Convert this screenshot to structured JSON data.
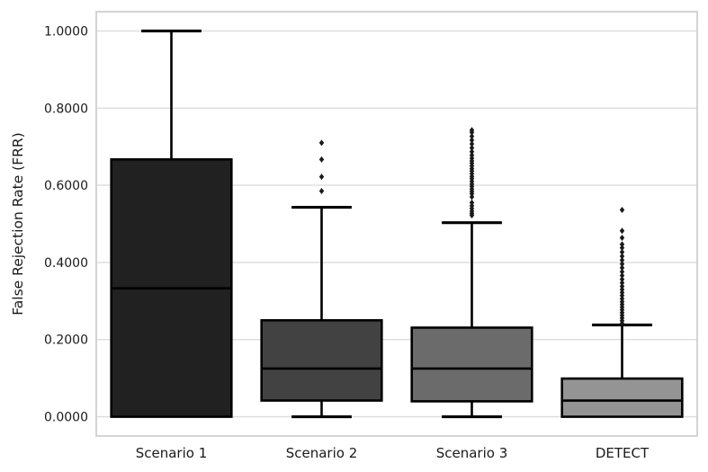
{
  "chart_data": {
    "type": "box",
    "title": "",
    "xlabel": "",
    "ylabel": "False Rejection Rate (FRR)",
    "ylim": [
      -0.05,
      1.05
    ],
    "yticks": [
      0.0,
      0.2,
      0.4,
      0.6,
      0.8,
      1.0
    ],
    "ytick_labels": [
      "0.0000",
      "0.2000",
      "0.4000",
      "0.6000",
      "0.8000",
      "1.0000"
    ],
    "grid": "horizontal",
    "legend": "none",
    "categories": [
      "Scenario 1",
      "Scenario 2",
      "Scenario 3",
      "DETECT"
    ],
    "boxes": [
      {
        "label": "Scenario 1",
        "slug": "scenario-1",
        "whisker_low": 0.0,
        "q1": 0.0,
        "median": 0.333,
        "q3": 0.667,
        "whisker_high": 1.0,
        "fill": "#212121",
        "outliers": []
      },
      {
        "label": "Scenario 2",
        "slug": "scenario-2",
        "whisker_low": 0.0,
        "q1": 0.042,
        "median": 0.125,
        "q3": 0.25,
        "whisker_high": 0.543,
        "fill": "#424242",
        "outliers": [
          0.585,
          0.622,
          0.667,
          0.71
        ]
      },
      {
        "label": "Scenario 3",
        "slug": "scenario-3",
        "whisker_low": 0.0,
        "q1": 0.04,
        "median": 0.125,
        "q3": 0.231,
        "whisker_high": 0.503,
        "fill": "#6b6b6b",
        "outliers": [
          0.522,
          0.527,
          0.533,
          0.54,
          0.547,
          0.555,
          0.57,
          0.578,
          0.584,
          0.59,
          0.597,
          0.603,
          0.61,
          0.617,
          0.623,
          0.63,
          0.637,
          0.643,
          0.65,
          0.657,
          0.663,
          0.67,
          0.678,
          0.687,
          0.697,
          0.707,
          0.717,
          0.727,
          0.737,
          0.743
        ]
      },
      {
        "label": "DETECT",
        "slug": "detect",
        "whisker_low": 0.0,
        "q1": 0.0,
        "median": 0.042,
        "q3": 0.099,
        "whisker_high": 0.238,
        "fill": "#949494",
        "outliers": [
          0.242,
          0.249,
          0.256,
          0.263,
          0.27,
          0.277,
          0.284,
          0.291,
          0.298,
          0.306,
          0.314,
          0.322,
          0.33,
          0.338,
          0.347,
          0.356,
          0.366,
          0.376,
          0.386,
          0.396,
          0.406,
          0.416,
          0.427,
          0.438,
          0.447,
          0.464,
          0.482,
          0.536
        ]
      }
    ],
    "colors": {
      "background": "#ffffff",
      "box_edge": "#000000",
      "median": "#000000",
      "whisker": "#000000",
      "outlier": "#1a1a1a",
      "grid": "#dcdcdc",
      "spine": "#d0d0d0",
      "text": "#1a1a1a"
    }
  }
}
